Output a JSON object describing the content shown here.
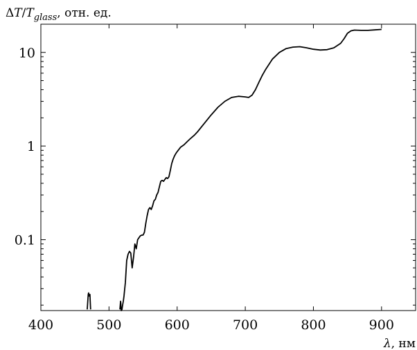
{
  "chart_data": {
    "type": "line",
    "ylabel": {
      "delta": "Δ",
      "T": "T",
      "slash": "/",
      "Tsub": "T",
      "sub": "glass",
      "rest": ", отн. ед."
    },
    "xlabel": {
      "lambda": "λ",
      "rest": ", нм"
    },
    "x_ticks": [
      400,
      500,
      600,
      700,
      800,
      900
    ],
    "y_ticks": [
      {
        "value": 0.1,
        "label": "0.1"
      },
      {
        "value": 1,
        "label": "1"
      },
      {
        "value": 10,
        "label": "10"
      }
    ],
    "xlim": [
      400,
      950
    ],
    "ylim": [
      0.0175,
      20
    ],
    "y_scale": "log",
    "grid": false,
    "series": [
      {
        "color": "#000000",
        "x": [
          468,
          469.5,
          470,
          471,
          472,
          473
        ],
        "y": [
          0.018,
          0.026,
          0.027,
          0.025,
          0.026,
          0.018
        ]
      },
      {
        "color": "#000000",
        "x": [
          516,
          517,
          518,
          519,
          520,
          521,
          522,
          524,
          526,
          528,
          530,
          532,
          534,
          536,
          538,
          540,
          542,
          544,
          546,
          548,
          550,
          552,
          554,
          556,
          558,
          560,
          562,
          564,
          566,
          568,
          570,
          572,
          574,
          576,
          578,
          580,
          582,
          584,
          586,
          588,
          590,
          592,
          594,
          596,
          598,
          600,
          605,
          610,
          615,
          620,
          625,
          630,
          640,
          650,
          660,
          670,
          680,
          690,
          700,
          705,
          710,
          715,
          720,
          725,
          730,
          740,
          750,
          760,
          770,
          780,
          790,
          800,
          810,
          820,
          830,
          840,
          845,
          850,
          855,
          860,
          870,
          880,
          890,
          900
        ],
        "y": [
          0.018,
          0.022,
          0.0175,
          0.018,
          0.02,
          0.022,
          0.025,
          0.035,
          0.06,
          0.07,
          0.075,
          0.072,
          0.05,
          0.065,
          0.09,
          0.08,
          0.1,
          0.105,
          0.11,
          0.112,
          0.112,
          0.12,
          0.15,
          0.18,
          0.21,
          0.22,
          0.21,
          0.23,
          0.26,
          0.27,
          0.3,
          0.32,
          0.37,
          0.42,
          0.43,
          0.42,
          0.44,
          0.46,
          0.45,
          0.47,
          0.55,
          0.65,
          0.72,
          0.78,
          0.83,
          0.87,
          0.97,
          1.03,
          1.12,
          1.21,
          1.3,
          1.42,
          1.75,
          2.15,
          2.6,
          3.0,
          3.3,
          3.4,
          3.35,
          3.3,
          3.5,
          4.0,
          4.8,
          5.7,
          6.6,
          8.5,
          10.0,
          11.0,
          11.4,
          11.5,
          11.2,
          10.8,
          10.6,
          10.7,
          11.2,
          12.5,
          14.0,
          16.0,
          17.0,
          17.3,
          17.2,
          17.2,
          17.4,
          17.6
        ]
      }
    ]
  }
}
